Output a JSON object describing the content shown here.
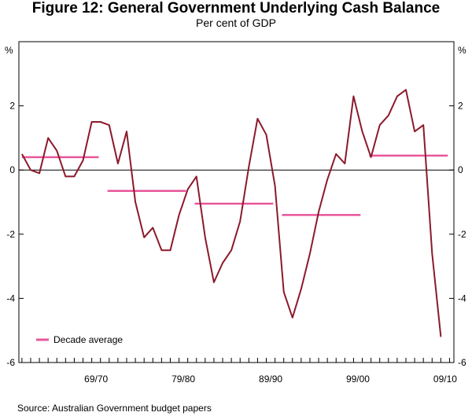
{
  "chart_data": {
    "type": "line",
    "title": "Figure 12: General Government Underlying Cash Balance",
    "subtitle": "Per cent of GDP",
    "ylabel_left": "%",
    "ylabel_right": "%",
    "ylim": [
      -6,
      4
    ],
    "yticks": [
      2,
      0,
      -2,
      -4,
      -6
    ],
    "x_tick_labels": [
      {
        "label": "69/70",
        "year": 1970
      },
      {
        "label": "79/80",
        "year": 1980
      },
      {
        "label": "89/90",
        "year": 1990
      },
      {
        "label": "99/00",
        "year": 2000
      },
      {
        "label": "09/10",
        "year": 2010
      }
    ],
    "xlim": [
      1960.65,
      2010.5
    ],
    "x_start_year": 1961,
    "series": [
      {
        "name": "Underlying cash balance",
        "color": "#8b1a2b",
        "values": [
          0.5,
          0.0,
          -0.1,
          1.0,
          0.6,
          -0.2,
          -0.2,
          0.3,
          1.5,
          1.5,
          1.4,
          0.2,
          1.2,
          -1.0,
          -2.1,
          -1.8,
          -2.5,
          -2.5,
          -1.4,
          -0.6,
          -0.2,
          -2.1,
          -3.5,
          -2.9,
          -2.5,
          -1.6,
          0.1,
          1.6,
          1.1,
          -0.5,
          -3.8,
          -4.6,
          -3.7,
          -2.6,
          -1.3,
          -0.3,
          0.5,
          0.2,
          2.3,
          1.2,
          0.4,
          1.4,
          1.7,
          2.3,
          2.5,
          1.2,
          1.4,
          -2.6,
          -5.2
        ]
      }
    ],
    "decade_averages": {
      "name": "Decade average",
      "color": "#e8559a",
      "segments": [
        {
          "start": 1961,
          "end": 1969.8,
          "value": 0.4
        },
        {
          "start": 1970.8,
          "end": 1979.8,
          "value": -0.65
        },
        {
          "start": 1980.8,
          "end": 1989.8,
          "value": -1.05
        },
        {
          "start": 1990.8,
          "end": 1999.8,
          "value": -1.4
        },
        {
          "start": 2000.8,
          "end": 2009.8,
          "value": 0.45
        }
      ]
    },
    "legend": {
      "position": "bottom-left",
      "label": "Decade average"
    },
    "source": "Source:  Australian Government budget papers"
  }
}
